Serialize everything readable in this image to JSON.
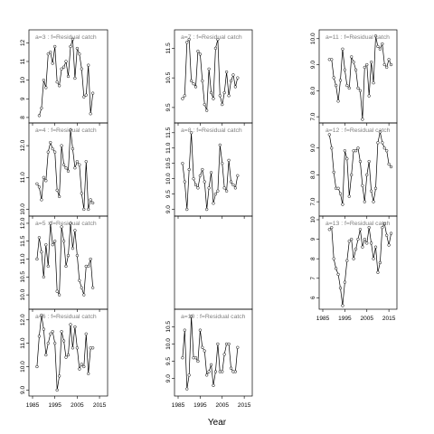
{
  "chart_data": {
    "type": "line",
    "xlabel": "Year",
    "ylabel": "",
    "xlim": [
      1985,
      2017
    ],
    "xticks": [
      1985,
      1995,
      2005,
      2015
    ],
    "panels": [
      {
        "label": "a=3 :  f=Residual catch",
        "ylim": [
          7.9,
          12.5
        ],
        "yticks": [
          "8",
          "9",
          "10",
          "11",
          "12"
        ],
        "x": [
          1988,
          1989,
          1990,
          1991,
          1992,
          1993,
          1994,
          1995,
          1996,
          1997,
          1998,
          1999,
          2000,
          2001,
          2002,
          2003,
          2004,
          2005,
          2006,
          2007,
          2008,
          2009,
          2010,
          2011,
          2012
        ],
        "y": [
          8.1,
          8.5,
          10.0,
          9.6,
          11.4,
          11.5,
          10.9,
          11.8,
          9.9,
          9.7,
          10.6,
          10.7,
          11.0,
          10.2,
          11.8,
          12.2,
          10.1,
          11.7,
          11.4,
          10.6,
          9.1,
          9.2,
          10.8,
          8.2,
          9.3
        ]
      },
      {
        "label": "a=4 :  f=Residual catch",
        "ylim": [
          9.9,
          12.6
        ],
        "yticks": [
          "10.0",
          "11.0",
          "12.0"
        ],
        "x": [
          1987,
          1988,
          1989,
          1990,
          1991,
          1992,
          1993,
          1994,
          1995,
          1996,
          1997,
          1998,
          1999,
          2000,
          2001,
          2002,
          2003,
          2004,
          2005,
          2006,
          2007,
          2008,
          2009,
          2010,
          2011,
          2012
        ],
        "y": [
          10.8,
          10.7,
          10.3,
          11.0,
          10.9,
          11.8,
          12.1,
          11.9,
          11.8,
          10.6,
          10.4,
          12.0,
          11.4,
          11.3,
          11.2,
          12.5,
          11.9,
          11.3,
          11.5,
          11.4,
          10.5,
          10.0,
          11.5,
          10.0,
          10.3,
          10.2
        ]
      },
      {
        "label": "a=5 :  f=Residual catch",
        "ylim": [
          9.7,
          12.1
        ],
        "yticks": [
          "10.0",
          "10.5",
          "11.0",
          "11.5",
          "12.0"
        ],
        "x": [
          1987,
          1988,
          1989,
          1990,
          1991,
          1992,
          1993,
          1994,
          1995,
          1996,
          1997,
          1998,
          1999,
          2000,
          2001,
          2002,
          2003,
          2004,
          2005,
          2006,
          2007,
          2008,
          2009,
          2010,
          2011,
          2012
        ],
        "y": [
          11.0,
          11.6,
          11.2,
          10.5,
          11.4,
          10.8,
          12.0,
          11.4,
          11.5,
          10.1,
          10.0,
          11.9,
          11.5,
          10.8,
          11.1,
          12.0,
          11.3,
          11.8,
          11.1,
          10.4,
          10.2,
          10.0,
          10.8,
          10.8,
          11.0,
          10.2
        ]
      },
      {
        "label": "a=6 :  f=Residual catch",
        "ylim": [
          8.9,
          12.3
        ],
        "yticks": [
          "9.0",
          "10.0",
          "11.0",
          "12.0"
        ],
        "x": [
          1987,
          1988,
          1989,
          1990,
          1991,
          1992,
          1993,
          1994,
          1995,
          1996,
          1997,
          1998,
          1999,
          2000,
          2001,
          2002,
          2003,
          2004,
          2005,
          2006,
          2007,
          2008,
          2009,
          2010,
          2011,
          2012
        ],
        "y": [
          10.0,
          11.3,
          12.2,
          11.6,
          10.5,
          11.0,
          11.4,
          11.5,
          11.0,
          9.0,
          9.6,
          11.5,
          11.1,
          10.4,
          10.5,
          11.8,
          10.8,
          11.7,
          10.8,
          9.9,
          10.1,
          10.0,
          11.4,
          9.7,
          10.8,
          10.8
        ]
      },
      {
        "label": "a=7 :  f=Residual catch",
        "ylim": [
          9.1,
          12.0
        ],
        "yticks": [
          "9.5",
          "10.5",
          "11.5"
        ],
        "x": [
          1987,
          1988,
          1989,
          1990,
          1991,
          1992,
          1993,
          1994,
          1995,
          1996,
          1997,
          1998,
          1999,
          2000,
          2001,
          2002,
          2003,
          2004,
          2005,
          2006,
          2007,
          2008,
          2009,
          2010,
          2011,
          2012
        ],
        "y": [
          9.8,
          9.9,
          11.7,
          11.8,
          10.4,
          10.3,
          10.2,
          11.4,
          11.3,
          10.4,
          9.6,
          9.4,
          10.8,
          10.0,
          9.8,
          11.5,
          11.8,
          9.9,
          9.6,
          10.0,
          10.7,
          9.9,
          10.4,
          10.6,
          10.2,
          10.5
        ]
      },
      {
        "label": "a=8 :  f=Residual catch",
        "ylim": [
          8.9,
          11.7
        ],
        "yticks": [
          "9.0",
          "9.5",
          "10.0",
          "10.5",
          "11.0",
          "11.5"
        ],
        "x": [
          1987,
          1988,
          1989,
          1990,
          1991,
          1992,
          1993,
          1994,
          1995,
          1996,
          1997,
          1998,
          1999,
          2000,
          2001,
          2002,
          2003,
          2004,
          2005,
          2006,
          2007,
          2008,
          2009,
          2010,
          2011,
          2012
        ],
        "y": [
          10.5,
          9.9,
          9.0,
          10.3,
          11.5,
          10.0,
          9.8,
          9.7,
          10.1,
          10.3,
          9.9,
          9.0,
          9.7,
          10.2,
          9.2,
          9.5,
          9.6,
          11.1,
          10.5,
          9.7,
          9.6,
          10.6,
          9.9,
          9.8,
          9.7,
          10.1
        ]
      },
      {
        "label": "a=10 :  f=Residual catch",
        "ylim": [
          8.6,
          10.9
        ],
        "yticks": [
          "9.0",
          "9.5",
          "10.0",
          "10.5"
        ],
        "x": [
          1987,
          1988,
          1989,
          1990,
          1991,
          1992,
          1993,
          1994,
          1995,
          1996,
          1997,
          1998,
          1999,
          2000,
          2001,
          2002,
          2003,
          2004,
          2005,
          2006,
          2007,
          2008,
          2009,
          2010,
          2011,
          2012
        ],
        "y": [
          9.6,
          10.4,
          8.7,
          9.1,
          10.8,
          9.6,
          9.6,
          9.5,
          10.4,
          9.9,
          9.8,
          9.1,
          9.2,
          9.4,
          8.8,
          9.2,
          10.0,
          9.2,
          9.2,
          9.7,
          10.0,
          10.0,
          9.3,
          9.2,
          9.2,
          9.9
        ]
      },
      {
        "label": "a=11 :  f=Residual catch",
        "ylim": [
          6.9,
          10.2
        ],
        "yticks": [
          "7.0",
          "8.0",
          "9.0",
          "10.0"
        ],
        "x": [
          1988,
          1989,
          1990,
          1991,
          1992,
          1993,
          1994,
          1995,
          1996,
          1997,
          1998,
          1999,
          2000,
          2001,
          2002,
          2003,
          2004,
          2005,
          2006,
          2007,
          2008,
          2009,
          2010,
          2011,
          2012,
          2013,
          2014,
          2015,
          2016
        ],
        "y": [
          9.2,
          9.2,
          8.5,
          8.2,
          7.6,
          8.4,
          9.6,
          8.8,
          8.2,
          8.1,
          9.3,
          9.1,
          8.8,
          8.1,
          8.0,
          6.9,
          8.9,
          9.0,
          7.8,
          9.1,
          8.3,
          10.1,
          9.7,
          9.6,
          9.8,
          9.0,
          8.9,
          9.2,
          9.0
        ]
      },
      {
        "label": "a=12 :  f=Residual catch",
        "ylim": [
          6.6,
          9.8
        ],
        "yticks": [
          "7.0",
          "8.0",
          "9.0"
        ],
        "x": [
          1988,
          1989,
          1990,
          1991,
          1992,
          1993,
          1994,
          1995,
          1996,
          1997,
          1998,
          1999,
          2000,
          2001,
          2002,
          2003,
          2004,
          2005,
          2006,
          2007,
          2008,
          2009,
          2010,
          2011,
          2012,
          2013,
          2014,
          2015,
          2016
        ],
        "y": [
          9.5,
          9.0,
          8.1,
          7.5,
          7.5,
          7.3,
          6.9,
          8.9,
          8.6,
          7.2,
          8.0,
          8.9,
          8.9,
          9.0,
          8.5,
          7.6,
          7.0,
          8.0,
          8.5,
          7.4,
          7.0,
          7.5,
          9.2,
          9.6,
          9.2,
          9.0,
          8.9,
          8.4,
          8.3
        ]
      },
      {
        "label": "a=13 :  f=Residual catch",
        "ylim": [
          5.6,
          10.0
        ],
        "yticks": [
          "6",
          "7",
          "8",
          "9",
          "10"
        ],
        "x": [
          1988,
          1989,
          1990,
          1991,
          1992,
          1993,
          1994,
          1995,
          1996,
          1997,
          1998,
          1999,
          2000,
          2001,
          2002,
          2003,
          2004,
          2005,
          2006,
          2007,
          2008,
          2009,
          2010,
          2011,
          2012,
          2013,
          2014,
          2015,
          2016
        ],
        "y": [
          9.5,
          9.6,
          8.0,
          7.5,
          7.2,
          6.5,
          5.6,
          6.8,
          7.9,
          8.9,
          9.0,
          8.0,
          8.5,
          9.0,
          9.5,
          8.6,
          9.0,
          8.8,
          9.6,
          8.8,
          8.0,
          8.6,
          7.3,
          7.8,
          9.6,
          9.8,
          9.2,
          8.7,
          9.3
        ]
      }
    ]
  }
}
